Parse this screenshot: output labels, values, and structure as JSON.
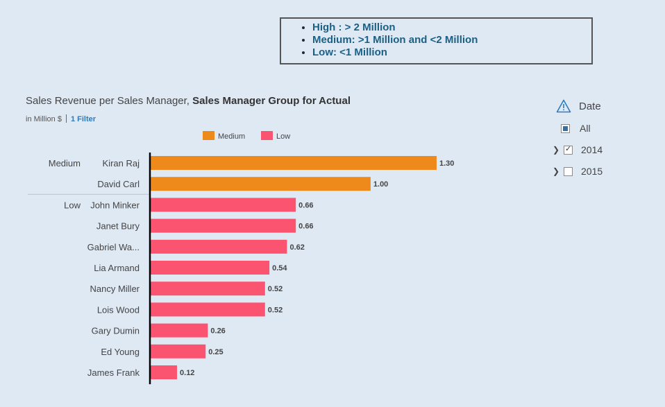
{
  "legend_box": {
    "items": [
      "High : > 2 Million",
      "Medium: >1 Million and <2 Million",
      "Low: <1 Million"
    ]
  },
  "chart_header": {
    "title_prefix": "Sales Revenue per Sales Manager, ",
    "title_bold": "Sales Manager Group for Actual",
    "unit": "in Million $",
    "filter_link": "1 Filter"
  },
  "filter_panel": {
    "title": "Date",
    "items": [
      {
        "label": "All",
        "state": "partial",
        "expandable": false
      },
      {
        "label": "2014",
        "state": "checked",
        "expandable": true
      },
      {
        "label": "2015",
        "state": "unchecked",
        "expandable": true
      }
    ]
  },
  "colors": {
    "Medium": "#ee8a1c",
    "Low": "#fa5470",
    "axis": "#000000"
  },
  "chart_data": {
    "type": "bar",
    "orientation": "horizontal",
    "title": "Sales Revenue per Sales Manager, Sales Manager Group for Actual",
    "unit": "in Million $",
    "legend": [
      "Medium",
      "Low"
    ],
    "legend_position": "top",
    "groups": [
      {
        "name": "Medium",
        "categories": [
          "Kiran Raj",
          "David Carl"
        ],
        "values": [
          1.3,
          1.0
        ],
        "labels": [
          "1.30",
          "1.00"
        ]
      },
      {
        "name": "Low",
        "categories": [
          "John Minker",
          "Janet Bury",
          "Gabriel Wa...",
          "Lia Armand",
          "Nancy Miller",
          "Lois Wood",
          "Gary Dumin",
          "Ed Young",
          "James Frank"
        ],
        "values": [
          0.66,
          0.66,
          0.62,
          0.54,
          0.52,
          0.52,
          0.26,
          0.25,
          0.12
        ],
        "labels": [
          "0.66",
          "0.66",
          "0.62",
          "0.54",
          "0.52",
          "0.52",
          "0.26",
          "0.25",
          "0.12"
        ]
      }
    ],
    "xlim": [
      0,
      1.3
    ],
    "grid": false
  }
}
